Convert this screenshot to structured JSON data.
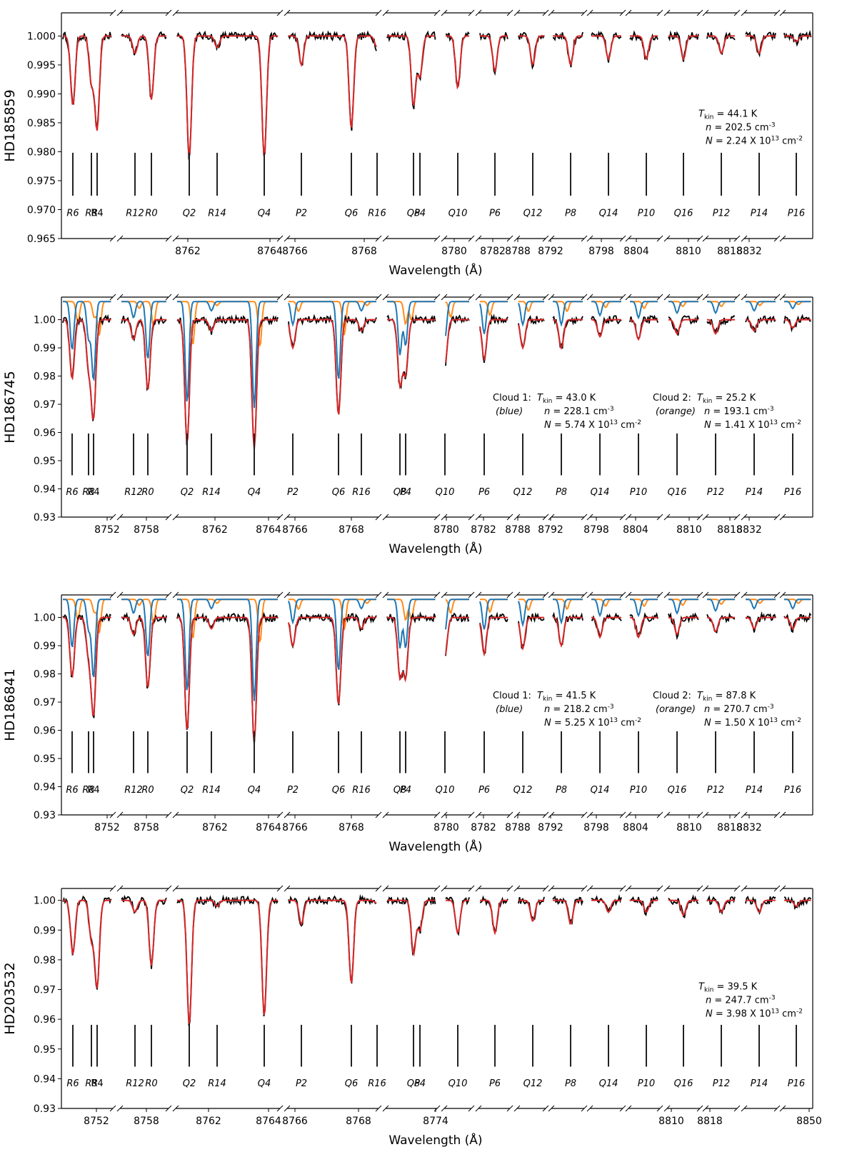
{
  "chart_data": {
    "type": "line",
    "line_labels": [
      "R6",
      "R8",
      "R4",
      "R12",
      "R0",
      "Q2",
      "R14",
      "Q4",
      "P2",
      "Q6",
      "R16",
      "Q8",
      "P4",
      "Q10",
      "P6",
      "Q12",
      "P8",
      "Q14",
      "P10",
      "Q16",
      "P12",
      "P14",
      "P16"
    ],
    "colors": {
      "observed": "#000000",
      "model": "#d62728",
      "cloud1": "#1f77b4",
      "cloud2": "#ff8c1a"
    },
    "x_axis_label": "Wavelength (Å)",
    "panels": [
      {
        "ylabel": "HD185859",
        "ylim": [
          0.965,
          1.004
        ],
        "yticks": [
          "0.965",
          "0.970",
          "0.975",
          "0.980",
          "0.985",
          "0.990",
          "0.995",
          "1.000"
        ],
        "xticks": [
          "8762",
          "8764",
          "8766",
          "8768",
          "8780",
          "8782",
          "8788",
          "8792",
          "8798",
          "8804",
          "8810",
          "8818",
          "8832"
        ],
        "depths": [
          0.012,
          0.008,
          0.016,
          0.003,
          0.011,
          0.021,
          0.002,
          0.021,
          0.005,
          0.016,
          0.002,
          0.012,
          0.007,
          0.009,
          0.006,
          0.005,
          0.005,
          0.004,
          0.004,
          0.004,
          0.003,
          0.003,
          0.001
        ],
        "two_clouds": false,
        "annotation": {
          "t_pre": "T",
          "t_sub": "kin",
          "t_post": " = 44.1 K",
          "n_pre": "n",
          "n_post": " = 202.5 cm",
          "n_exp": "-3",
          "N_pre": "N",
          "N_post": " = 2.24 X 10",
          "N_exp": "13",
          "N_unit": " cm",
          "N_unit_exp": "-2"
        }
      },
      {
        "ylabel": "HD186745",
        "ylim": [
          0.93,
          1.008
        ],
        "yticks": [
          "0.93",
          "0.94",
          "0.95",
          "0.96",
          "0.97",
          "0.98",
          "0.99",
          "1.00"
        ],
        "xticks": [
          "8752",
          "8758",
          "8762",
          "8764",
          "8766",
          "8768",
          "8780",
          "8782",
          "8788",
          "8792",
          "8798",
          "8804",
          "8810",
          "8818",
          "8832"
        ],
        "depths": [
          0.021,
          0.016,
          0.034,
          0.007,
          0.025,
          0.044,
          0.004,
          0.046,
          0.01,
          0.034,
          0.004,
          0.023,
          0.019,
          0.016,
          0.014,
          0.01,
          0.01,
          0.006,
          0.007,
          0.005,
          0.005,
          0.004,
          0.003
        ],
        "two_clouds": true,
        "annotation1": {
          "label": "Cloud 1:",
          "color_label": "(blue)",
          "t_pre": "T",
          "t_sub": "kin",
          "t_post": " = 43.0 K",
          "n_pre": "n",
          "n_post": " = 228.1 cm",
          "n_exp": "-3",
          "N_pre": "N",
          "N_post": " = 5.74 X 10",
          "N_exp": "13",
          "N_unit": " cm",
          "N_unit_exp": "-2"
        },
        "annotation2": {
          "label": "Cloud 2:",
          "color_label": "(orange)",
          "t_pre": "T",
          "t_sub": "kin",
          "t_post": " = 25.2 K",
          "n_pre": "n",
          "n_post": " = 193.1 cm",
          "n_exp": "-3",
          "N_pre": "N",
          "N_post": " = 1.41 X 10",
          "N_exp": "13",
          "N_unit": " cm",
          "N_unit_exp": "-2"
        }
      },
      {
        "ylabel": "HD186841",
        "ylim": [
          0.93,
          1.008
        ],
        "yticks": [
          "0.93",
          "0.94",
          "0.95",
          "0.96",
          "0.97",
          "0.98",
          "0.99",
          "1.00"
        ],
        "xticks": [
          "8752",
          "8758",
          "8762",
          "8764",
          "8766",
          "8768",
          "8780",
          "8782",
          "8788",
          "8792",
          "8798",
          "8804",
          "8810",
          "8818",
          "8832"
        ],
        "depths": [
          0.021,
          0.013,
          0.034,
          0.006,
          0.025,
          0.04,
          0.004,
          0.044,
          0.01,
          0.031,
          0.004,
          0.021,
          0.021,
          0.014,
          0.013,
          0.011,
          0.01,
          0.007,
          0.007,
          0.006,
          0.005,
          0.004,
          0.004
        ],
        "two_clouds": true,
        "annotation1": {
          "label": "Cloud 1:",
          "color_label": "(blue)",
          "t_pre": "T",
          "t_sub": "kin",
          "t_post": " = 41.5 K",
          "n_pre": "n",
          "n_post": " = 218.2 cm",
          "n_exp": "-3",
          "N_pre": "N",
          "N_post": " = 5.25 X 10",
          "N_exp": "13",
          "N_unit": " cm",
          "N_unit_exp": "-2"
        },
        "annotation2": {
          "label": "Cloud 2:",
          "color_label": "(orange)",
          "t_pre": "T",
          "t_sub": "kin",
          "t_post": " = 87.8 K",
          "n_pre": "n",
          "n_post": " = 270.7 cm",
          "n_exp": "-3",
          "N_pre": "N",
          "N_post": " = 1.50 X 10",
          "N_exp": "13",
          "N_unit": " cm",
          "N_unit_exp": "-2"
        }
      },
      {
        "ylabel": "HD203532",
        "ylim": [
          0.93,
          1.004
        ],
        "yticks": [
          "0.93",
          "0.94",
          "0.95",
          "0.96",
          "0.97",
          "0.98",
          "0.99",
          "1.00"
        ],
        "xticks": [
          "8752",
          "8758",
          "8762",
          "8764",
          "8766",
          "8768",
          "8774",
          "8810",
          "8818",
          "8850"
        ],
        "depths": [
          0.018,
          0.013,
          0.029,
          0.004,
          0.022,
          0.042,
          0.002,
          0.039,
          0.008,
          0.028,
          0.001,
          0.018,
          0.01,
          0.011,
          0.011,
          0.007,
          0.008,
          0.004,
          0.004,
          0.005,
          0.004,
          0.004,
          0.002
        ],
        "two_clouds": false,
        "annotation": {
          "t_pre": "T",
          "t_sub": "kin",
          "t_post": " = 39.5 K",
          "n_pre": "n",
          "n_post": " = 247.7 cm",
          "n_exp": "-3",
          "N_pre": "N",
          "N_post": " = 3.98 X 10",
          "N_exp": "13",
          "N_unit": " cm",
          "N_unit_exp": "-2"
        }
      }
    ]
  }
}
